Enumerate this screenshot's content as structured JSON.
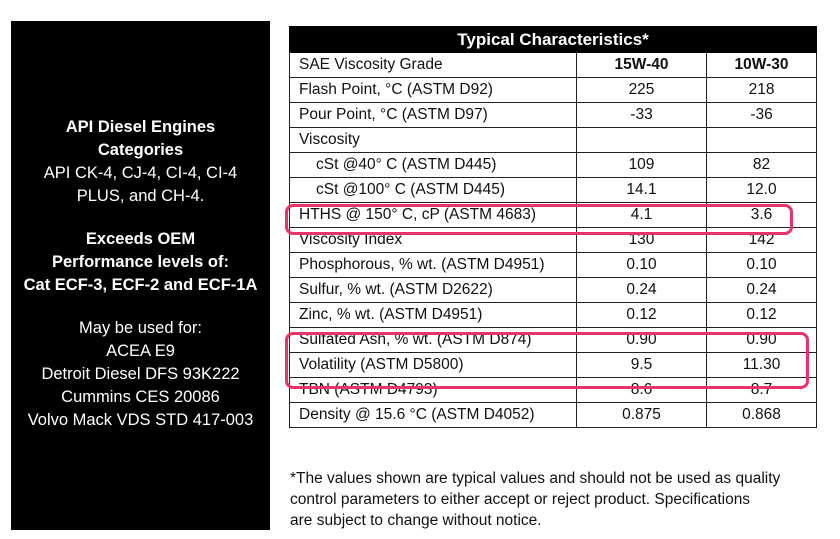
{
  "left_panel": {
    "categories_heading": [
      "API Diesel Engines",
      "Categories"
    ],
    "categories_list": [
      "API CK-4, CJ-4, CI-4, CI-4",
      "PLUS, and CH-4."
    ],
    "oem_heading": [
      "Exceeds OEM",
      "Performance levels of:",
      "Cat ECF-3, ECF-2 and ECF-1A"
    ],
    "usage_heading": "May be used for:",
    "usage_list": [
      "ACEA E9",
      "Detroit Diesel DFS 93K222",
      "Cummins CES 20086",
      "Volvo Mack VDS STD 417-003"
    ]
  },
  "table": {
    "title": "Typical Characteristics*",
    "header_label": "SAE Viscosity Grade",
    "col_15w40": "15W-40",
    "col_10w30": "10W-30",
    "rows": [
      {
        "label": "Flash Point, °C (ASTM D92)",
        "v1": "225",
        "v2": "218"
      },
      {
        "label": "Pour Point, °C (ASTM D97)",
        "v1": "-33",
        "v2": "-36"
      },
      {
        "label": "Viscosity",
        "v1": "",
        "v2": ""
      },
      {
        "label": "cSt @40° C (ASTM D445)",
        "v1": "109",
        "v2": "82"
      },
      {
        "label": "cSt @100° C (ASTM D445)",
        "v1": "14.1",
        "v2": "12.0"
      },
      {
        "label": "HTHS @ 150° C, cP (ASTM 4683)",
        "v1": "4.1",
        "v2": "3.6"
      },
      {
        "label": "Viscosity Index",
        "v1": "130",
        "v2": "142"
      },
      {
        "label": "Phosphorous, % wt. (ASTM D4951)",
        "v1": "0.10",
        "v2": "0.10"
      },
      {
        "label": "Sulfur, % wt. (ASTM D2622)",
        "v1": "0.24",
        "v2": "0.24"
      },
      {
        "label": "Zinc, % wt. (ASTM D4951)",
        "v1": "0.12",
        "v2": "0.12"
      },
      {
        "label": "Sulfated Ash, % wt. (ASTM D874)",
        "v1": "0.90",
        "v2": "0.90"
      },
      {
        "label": "Volatility (ASTM D5800)",
        "v1": "9.5",
        "v2": "11.30"
      },
      {
        "label": "TBN (ASTM D4793)",
        "v1": "8.6",
        "v2": "8.7"
      },
      {
        "label": "Density @ 15.6 °C (ASTM D4052)",
        "v1": "0.875",
        "v2": "0.868"
      }
    ]
  },
  "highlight_color": "#e8336b",
  "footnote": [
    "*The values shown are typical values and should not be used as quality",
    "control parameters to either accept or reject product. Specifications",
    "are subject to change without notice."
  ]
}
